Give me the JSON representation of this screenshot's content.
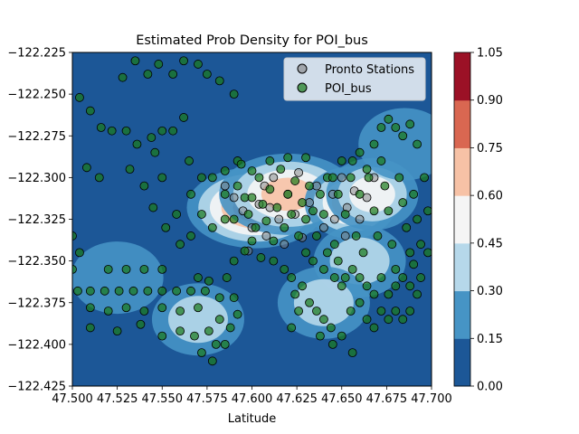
{
  "chart_data": {
    "type": "scatter",
    "title": "Estimated Prob Density for POI_bus",
    "xlabel": "Latitude",
    "ylabel": "",
    "xlim": [
      47.5,
      47.7
    ],
    "ylim": [
      -122.425,
      -122.225
    ],
    "x_ticks": [
      "47.500",
      "47.525",
      "47.550",
      "47.575",
      "47.600",
      "47.625",
      "47.650",
      "47.675",
      "47.700"
    ],
    "y_ticks": [
      "-122.225",
      "-122.250",
      "-122.275",
      "-122.300",
      "-122.325",
      "-122.350",
      "-122.375",
      "-122.400",
      "-122.425"
    ],
    "background": "filled density contours",
    "colorbar": {
      "ticks": [
        "0.00",
        "0.15",
        "0.30",
        "0.45",
        "0.60",
        "0.75",
        "0.90",
        "1.05"
      ],
      "levels": [
        0.0,
        0.15,
        0.3,
        0.45,
        0.6,
        0.75,
        0.9,
        1.05
      ],
      "colors": [
        "#1c5797",
        "#4694c5",
        "#b6d8ea",
        "#f5f5f5",
        "#f7c2a6",
        "#d96751",
        "#9b1126"
      ]
    },
    "legend": {
      "placement": "top-right",
      "entries": [
        {
          "label": "Pronto Stations",
          "color": "#808080"
        },
        {
          "label": "POI_bus",
          "color": "#1a7a1a"
        }
      ]
    },
    "density_peaks": [
      {
        "x": 47.602,
        "y": -122.318,
        "level": 0.8
      },
      {
        "x": 47.62,
        "y": -122.31,
        "level": 0.6
      },
      {
        "x": 47.655,
        "y": -122.315,
        "level": 0.65
      },
      {
        "x": 47.667,
        "y": -122.31,
        "level": 0.45
      },
      {
        "x": 47.66,
        "y": -122.35,
        "level": 0.4
      },
      {
        "x": 47.64,
        "y": -122.375,
        "level": 0.3
      },
      {
        "x": 47.57,
        "y": -122.385,
        "level": 0.3
      },
      {
        "x": 47.525,
        "y": -122.36,
        "level": 0.25
      },
      {
        "x": 47.685,
        "y": -122.28,
        "level": 0.25
      }
    ],
    "series": [
      {
        "name": "Pronto Stations",
        "points": [
          [
            47.59,
            -122.312
          ],
          [
            47.595,
            -122.32
          ],
          [
            47.6,
            -122.33
          ],
          [
            47.604,
            -122.316
          ],
          [
            47.608,
            -122.335
          ],
          [
            47.612,
            -122.3
          ],
          [
            47.615,
            -122.325
          ],
          [
            47.618,
            -122.34
          ],
          [
            47.62,
            -122.31
          ],
          [
            47.624,
            -122.322
          ],
          [
            47.628,
            -122.336
          ],
          [
            47.632,
            -122.315
          ],
          [
            47.636,
            -122.305
          ],
          [
            47.64,
            -122.33
          ],
          [
            47.645,
            -122.31
          ],
          [
            47.65,
            -122.3
          ],
          [
            47.653,
            -122.318
          ],
          [
            47.657,
            -122.308
          ],
          [
            47.66,
            -122.325
          ],
          [
            47.664,
            -122.312
          ],
          [
            47.668,
            -122.3
          ],
          [
            47.598,
            -122.344
          ],
          [
            47.607,
            -122.305
          ],
          [
            47.626,
            -122.297
          ],
          [
            47.646,
            -122.325
          ],
          [
            47.585,
            -122.305
          ],
          [
            47.652,
            -122.335
          ],
          [
            47.61,
            -122.318
          ]
        ]
      },
      {
        "name": "POI_bus",
        "points": [
          [
            47.504,
            -122.252
          ],
          [
            47.51,
            -122.26
          ],
          [
            47.516,
            -122.27
          ],
          [
            47.522,
            -122.272
          ],
          [
            47.53,
            -122.272
          ],
          [
            47.536,
            -122.28
          ],
          [
            47.544,
            -122.276
          ],
          [
            47.55,
            -122.272
          ],
          [
            47.556,
            -122.272
          ],
          [
            47.562,
            -122.264
          ],
          [
            47.508,
            -122.294
          ],
          [
            47.515,
            -122.3
          ],
          [
            47.532,
            -122.295
          ],
          [
            47.546,
            -122.285
          ],
          [
            47.55,
            -122.3
          ],
          [
            47.565,
            -122.29
          ],
          [
            47.572,
            -122.3
          ],
          [
            47.578,
            -122.3
          ],
          [
            47.585,
            -122.296
          ],
          [
            47.592,
            -122.29
          ],
          [
            47.535,
            -122.23
          ],
          [
            47.542,
            -122.238
          ],
          [
            47.548,
            -122.232
          ],
          [
            47.556,
            -122.238
          ],
          [
            47.562,
            -122.23
          ],
          [
            47.57,
            -122.232
          ],
          [
            47.575,
            -122.238
          ],
          [
            47.582,
            -122.242
          ],
          [
            47.59,
            -122.25
          ],
          [
            47.528,
            -122.24
          ],
          [
            47.54,
            -122.305
          ],
          [
            47.545,
            -122.318
          ],
          [
            47.552,
            -122.33
          ],
          [
            47.558,
            -122.322
          ],
          [
            47.566,
            -122.31
          ],
          [
            47.572,
            -122.322
          ],
          [
            47.578,
            -122.33
          ],
          [
            47.585,
            -122.325
          ],
          [
            47.566,
            -122.335
          ],
          [
            47.56,
            -122.34
          ],
          [
            47.5,
            -122.335
          ],
          [
            47.504,
            -122.345
          ],
          [
            47.5,
            -122.355
          ],
          [
            47.503,
            -122.368
          ],
          [
            47.51,
            -122.368
          ],
          [
            47.518,
            -122.368
          ],
          [
            47.526,
            -122.368
          ],
          [
            47.534,
            -122.368
          ],
          [
            47.542,
            -122.368
          ],
          [
            47.55,
            -122.368
          ],
          [
            47.558,
            -122.368
          ],
          [
            47.566,
            -122.368
          ],
          [
            47.574,
            -122.368
          ],
          [
            47.582,
            -122.372
          ],
          [
            47.52,
            -122.355
          ],
          [
            47.53,
            -122.355
          ],
          [
            47.54,
            -122.355
          ],
          [
            47.55,
            -122.355
          ],
          [
            47.51,
            -122.378
          ],
          [
            47.52,
            -122.38
          ],
          [
            47.53,
            -122.378
          ],
          [
            47.54,
            -122.38
          ],
          [
            47.55,
            -122.378
          ],
          [
            47.56,
            -122.38
          ],
          [
            47.57,
            -122.378
          ],
          [
            47.51,
            -122.39
          ],
          [
            47.525,
            -122.392
          ],
          [
            47.538,
            -122.388
          ],
          [
            47.55,
            -122.395
          ],
          [
            47.56,
            -122.392
          ],
          [
            47.568,
            -122.395
          ],
          [
            47.576,
            -122.392
          ],
          [
            47.582,
            -122.385
          ],
          [
            47.588,
            -122.39
          ],
          [
            47.592,
            -122.382
          ],
          [
            47.58,
            -122.4
          ],
          [
            47.572,
            -122.405
          ],
          [
            47.578,
            -122.41
          ],
          [
            47.585,
            -122.4
          ],
          [
            47.59,
            -122.372
          ],
          [
            47.57,
            -122.36
          ],
          [
            47.576,
            -122.362
          ],
          [
            47.586,
            -122.36
          ],
          [
            47.59,
            -122.35
          ],
          [
            47.596,
            -122.344
          ],
          [
            47.592,
            -122.305
          ],
          [
            47.596,
            -122.312
          ],
          [
            47.598,
            -122.322
          ],
          [
            47.6,
            -122.312
          ],
          [
            47.602,
            -122.33
          ],
          [
            47.604,
            -122.3
          ],
          [
            47.606,
            -122.316
          ],
          [
            47.608,
            -122.326
          ],
          [
            47.61,
            -122.307
          ],
          [
            47.612,
            -122.338
          ],
          [
            47.614,
            -122.318
          ],
          [
            47.616,
            -122.295
          ],
          [
            47.618,
            -122.33
          ],
          [
            47.62,
            -122.31
          ],
          [
            47.622,
            -122.322
          ],
          [
            47.624,
            -122.302
          ],
          [
            47.626,
            -122.335
          ],
          [
            47.628,
            -122.315
          ],
          [
            47.63,
            -122.325
          ],
          [
            47.632,
            -122.305
          ],
          [
            47.634,
            -122.32
          ],
          [
            47.636,
            -122.335
          ],
          [
            47.638,
            -122.31
          ],
          [
            47.64,
            -122.322
          ],
          [
            47.642,
            -122.3
          ],
          [
            47.594,
            -122.292
          ],
          [
            47.6,
            -122.296
          ],
          [
            47.61,
            -122.29
          ],
          [
            47.62,
            -122.288
          ],
          [
            47.63,
            -122.288
          ],
          [
            47.585,
            -122.31
          ],
          [
            47.59,
            -122.325
          ],
          [
            47.6,
            -122.338
          ],
          [
            47.605,
            -122.348
          ],
          [
            47.612,
            -122.35
          ],
          [
            47.618,
            -122.355
          ],
          [
            47.622,
            -122.36
          ],
          [
            47.624,
            -122.37
          ],
          [
            47.626,
            -122.38
          ],
          [
            47.622,
            -122.39
          ],
          [
            47.63,
            -122.345
          ],
          [
            47.634,
            -122.35
          ],
          [
            47.64,
            -122.355
          ],
          [
            47.646,
            -122.36
          ],
          [
            47.65,
            -122.365
          ],
          [
            47.628,
            -122.365
          ],
          [
            47.632,
            -122.375
          ],
          [
            47.636,
            -122.38
          ],
          [
            47.64,
            -122.385
          ],
          [
            47.644,
            -122.39
          ],
          [
            47.638,
            -122.395
          ],
          [
            47.645,
            -122.4
          ],
          [
            47.65,
            -122.395
          ],
          [
            47.655,
            -122.38
          ],
          [
            47.66,
            -122.375
          ],
          [
            47.664,
            -122.385
          ],
          [
            47.668,
            -122.39
          ],
          [
            47.672,
            -122.38
          ],
          [
            47.676,
            -122.385
          ],
          [
            47.68,
            -122.38
          ],
          [
            47.684,
            -122.385
          ],
          [
            47.688,
            -122.38
          ],
          [
            47.692,
            -122.37
          ],
          [
            47.694,
            -122.36
          ],
          [
            47.69,
            -122.352
          ],
          [
            47.645,
            -122.3
          ],
          [
            47.648,
            -122.31
          ],
          [
            47.652,
            -122.322
          ],
          [
            47.655,
            -122.3
          ],
          [
            47.658,
            -122.335
          ],
          [
            47.66,
            -122.31
          ],
          [
            47.662,
            -122.345
          ],
          [
            47.665,
            -122.3
          ],
          [
            47.668,
            -122.32
          ],
          [
            47.67,
            -122.335
          ],
          [
            47.672,
            -122.29
          ],
          [
            47.674,
            -122.305
          ],
          [
            47.676,
            -122.32
          ],
          [
            47.678,
            -122.34
          ],
          [
            47.68,
            -122.355
          ],
          [
            47.682,
            -122.3
          ],
          [
            47.684,
            -122.315
          ],
          [
            47.686,
            -122.33
          ],
          [
            47.688,
            -122.345
          ],
          [
            47.69,
            -122.31
          ],
          [
            47.692,
            -122.325
          ],
          [
            47.694,
            -122.34
          ],
          [
            47.696,
            -122.3
          ],
          [
            47.668,
            -122.28
          ],
          [
            47.672,
            -122.27
          ],
          [
            47.676,
            -122.265
          ],
          [
            47.68,
            -122.27
          ],
          [
            47.684,
            -122.275
          ],
          [
            47.688,
            -122.268
          ],
          [
            47.692,
            -122.28
          ],
          [
            47.66,
            -122.285
          ],
          [
            47.664,
            -122.295
          ],
          [
            47.656,
            -122.29
          ],
          [
            47.65,
            -122.29
          ],
          [
            47.646,
            -122.34
          ],
          [
            47.642,
            -122.345
          ],
          [
            47.648,
            -122.35
          ],
          [
            47.652,
            -122.36
          ],
          [
            47.656,
            -122.355
          ],
          [
            47.66,
            -122.36
          ],
          [
            47.664,
            -122.365
          ],
          [
            47.668,
            -122.37
          ],
          [
            47.672,
            -122.36
          ],
          [
            47.676,
            -122.37
          ],
          [
            47.68,
            -122.365
          ],
          [
            47.684,
            -122.36
          ],
          [
            47.688,
            -122.365
          ],
          [
            47.698,
            -122.32
          ],
          [
            47.698,
            -122.345
          ],
          [
            47.656,
            -122.405
          ]
        ]
      }
    ]
  }
}
